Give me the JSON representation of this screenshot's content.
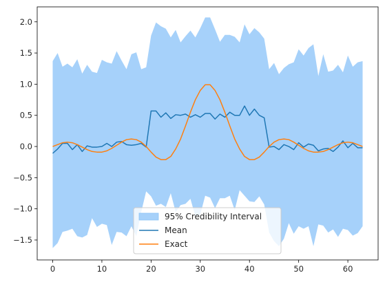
{
  "chart_data": {
    "type": "line",
    "title": "",
    "xlabel": "",
    "ylabel": "",
    "xlim": [
      -3.15,
      66.15
    ],
    "ylim": [
      -1.82,
      2.24
    ],
    "xticks": [
      0,
      10,
      20,
      30,
      40,
      50,
      60
    ],
    "yticks": [
      -1.5,
      -1.0,
      -0.5,
      0.0,
      0.5,
      1.0,
      1.5,
      2.0
    ],
    "xtick_labels": [
      "0",
      "10",
      "20",
      "30",
      "40",
      "50",
      "60"
    ],
    "ytick_labels": [
      "−1.5",
      "−1.0",
      "−0.5",
      "0.0",
      "0.5",
      "1.0",
      "1.5",
      "2.0"
    ],
    "grid": false,
    "legend_position": "lower center",
    "x": [
      0,
      1,
      2,
      3,
      4,
      5,
      6,
      7,
      8,
      9,
      10,
      11,
      12,
      13,
      14,
      15,
      16,
      17,
      18,
      19,
      20,
      21,
      22,
      23,
      24,
      25,
      26,
      27,
      28,
      29,
      30,
      31,
      32,
      33,
      34,
      35,
      36,
      37,
      38,
      39,
      40,
      41,
      42,
      43,
      44,
      45,
      46,
      47,
      48,
      49,
      50,
      51,
      52,
      53,
      54,
      55,
      56,
      57,
      58,
      59,
      60,
      61,
      62,
      63
    ],
    "series": [
      {
        "name": "95% Credibility Interval",
        "kind": "band",
        "color": "#a6d1fa",
        "upper": [
          1.37,
          1.5,
          1.28,
          1.33,
          1.27,
          1.4,
          1.17,
          1.31,
          1.2,
          1.18,
          1.39,
          1.35,
          1.33,
          1.53,
          1.38,
          1.24,
          1.48,
          1.51,
          1.24,
          1.27,
          1.78,
          1.99,
          1.93,
          1.89,
          1.75,
          1.87,
          1.67,
          1.77,
          1.86,
          1.75,
          1.9,
          2.07,
          2.07,
          1.88,
          1.68,
          1.79,
          1.79,
          1.76,
          1.67,
          1.96,
          1.8,
          1.9,
          1.83,
          1.73,
          1.24,
          1.34,
          1.16,
          1.26,
          1.32,
          1.35,
          1.56,
          1.46,
          1.58,
          1.64,
          1.13,
          1.48,
          1.2,
          1.22,
          1.31,
          1.19,
          1.46,
          1.28,
          1.35,
          1.37
        ],
        "lower": [
          -1.63,
          -1.55,
          -1.37,
          -1.35,
          -1.32,
          -1.44,
          -1.46,
          -1.42,
          -1.15,
          -1.29,
          -1.24,
          -1.26,
          -1.58,
          -1.37,
          -1.38,
          -1.44,
          -1.28,
          -1.44,
          -1.05,
          -0.72,
          -0.8,
          -0.95,
          -0.92,
          -0.97,
          -0.75,
          -1.05,
          -0.94,
          -0.92,
          -0.84,
          -1.12,
          -1.09,
          -0.79,
          -0.82,
          -0.99,
          -0.83,
          -0.83,
          -0.79,
          -1.02,
          -0.7,
          -0.79,
          -0.88,
          -0.89,
          -0.8,
          -0.93,
          -1.38,
          -1.52,
          -1.6,
          -1.48,
          -1.23,
          -1.4,
          -1.28,
          -1.32,
          -1.28,
          -1.6,
          -1.25,
          -1.27,
          -1.38,
          -1.33,
          -1.45,
          -1.32,
          -1.34,
          -1.43,
          -1.39,
          -1.28
        ]
      },
      {
        "name": "Mean",
        "kind": "line",
        "color": "#1f77b4",
        "values": [
          -0.11,
          -0.04,
          0.05,
          0.05,
          -0.05,
          0.03,
          -0.08,
          0.01,
          -0.01,
          -0.01,
          0.0,
          0.05,
          0.0,
          0.07,
          0.08,
          0.03,
          0.02,
          0.03,
          0.05,
          -0.01,
          0.57,
          0.57,
          0.47,
          0.54,
          0.45,
          0.51,
          0.5,
          0.52,
          0.47,
          0.51,
          0.47,
          0.53,
          0.53,
          0.44,
          0.52,
          0.47,
          0.55,
          0.5,
          0.5,
          0.65,
          0.5,
          0.6,
          0.5,
          0.46,
          -0.01,
          0.0,
          -0.05,
          0.03,
          0.0,
          -0.05,
          0.06,
          -0.01,
          0.04,
          0.02,
          -0.07,
          -0.04,
          -0.03,
          -0.08,
          -0.01,
          0.09,
          -0.02,
          0.05,
          -0.02,
          -0.02
        ]
      },
      {
        "name": "Exact",
        "kind": "line",
        "color": "#ff7f0e",
        "values": [
          0.0,
          0.03,
          0.06,
          0.07,
          0.06,
          0.03,
          -0.01,
          -0.05,
          -0.08,
          -0.09,
          -0.09,
          -0.07,
          -0.03,
          0.02,
          0.07,
          0.11,
          0.12,
          0.11,
          0.07,
          0.0,
          -0.09,
          -0.17,
          -0.21,
          -0.21,
          -0.16,
          -0.04,
          0.12,
          0.33,
          0.55,
          0.75,
          0.9,
          0.99,
          0.99,
          0.9,
          0.75,
          0.55,
          0.33,
          0.12,
          -0.04,
          -0.16,
          -0.21,
          -0.21,
          -0.17,
          -0.09,
          0.0,
          0.07,
          0.11,
          0.12,
          0.11,
          0.07,
          0.02,
          -0.03,
          -0.07,
          -0.09,
          -0.09,
          -0.08,
          -0.05,
          -0.01,
          0.03,
          0.06,
          0.07,
          0.06,
          0.03,
          0.0
        ]
      }
    ]
  }
}
